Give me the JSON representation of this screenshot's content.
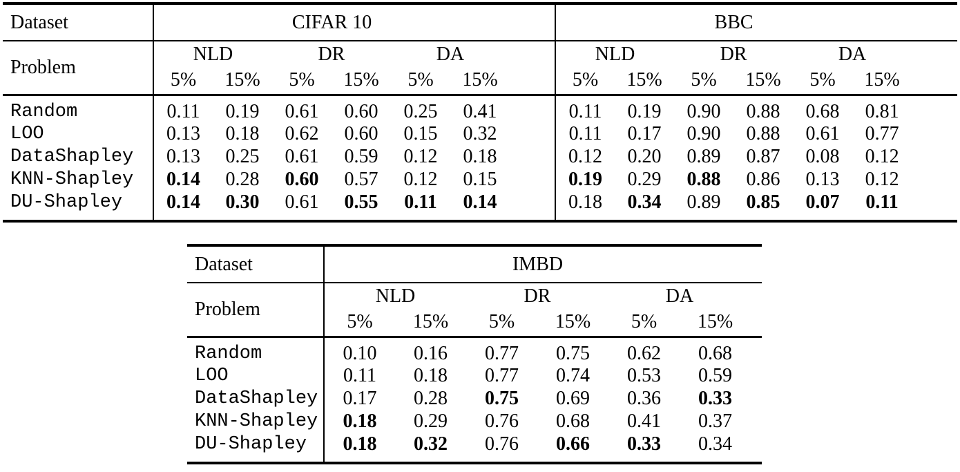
{
  "labels": {
    "dataset": "Dataset",
    "problem": "Problem"
  },
  "problems": [
    "NLD",
    "DR",
    "DA"
  ],
  "percents": [
    "5%",
    "15%"
  ],
  "colors": {
    "background": "#ffffff",
    "text": "#000000",
    "rule": "#000000"
  },
  "table_top": {
    "datasets": [
      "CIFAR 10",
      "BBC"
    ],
    "rows": [
      {
        "method": "Random",
        "cells": [
          {
            "t": "0.11"
          },
          {
            "t": "0.19"
          },
          {
            "t": "0.61"
          },
          {
            "t": "0.60"
          },
          {
            "t": "0.25"
          },
          {
            "t": "0.41"
          },
          {
            "t": "0.11"
          },
          {
            "t": "0.19"
          },
          {
            "t": "0.90"
          },
          {
            "t": "0.88"
          },
          {
            "t": "0.68"
          },
          {
            "t": "0.81"
          }
        ]
      },
      {
        "method": "LOO",
        "cells": [
          {
            "t": "0.13"
          },
          {
            "t": "0.18"
          },
          {
            "t": "0.62"
          },
          {
            "t": "0.60"
          },
          {
            "t": "0.15"
          },
          {
            "t": "0.32"
          },
          {
            "t": "0.11"
          },
          {
            "t": "0.17"
          },
          {
            "t": "0.90"
          },
          {
            "t": "0.88"
          },
          {
            "t": "0.61"
          },
          {
            "t": "0.77"
          }
        ]
      },
      {
        "method": "DataShapley",
        "cells": [
          {
            "t": "0.13"
          },
          {
            "t": "0.25"
          },
          {
            "t": "0.61"
          },
          {
            "t": "0.59"
          },
          {
            "t": "0.12"
          },
          {
            "t": "0.18"
          },
          {
            "t": "0.12"
          },
          {
            "t": "0.20"
          },
          {
            "t": "0.89"
          },
          {
            "t": "0.87"
          },
          {
            "t": "0.08"
          },
          {
            "t": "0.12"
          }
        ]
      },
      {
        "method": "KNN-Shapley",
        "cells": [
          {
            "t": "0.14",
            "b": true
          },
          {
            "t": "0.28"
          },
          {
            "t": "0.60",
            "b": true
          },
          {
            "t": "0.57"
          },
          {
            "t": "0.12"
          },
          {
            "t": "0.15"
          },
          {
            "t": "0.19",
            "b": true
          },
          {
            "t": "0.29"
          },
          {
            "t": "0.88",
            "b": true
          },
          {
            "t": "0.86"
          },
          {
            "t": "0.13"
          },
          {
            "t": "0.12"
          }
        ]
      },
      {
        "method": "DU-Shapley",
        "cells": [
          {
            "t": "0.14",
            "b": true
          },
          {
            "t": "0.30",
            "b": true
          },
          {
            "t": "0.61"
          },
          {
            "t": "0.55",
            "b": true
          },
          {
            "t": "0.11",
            "b": true
          },
          {
            "t": "0.14",
            "b": true
          },
          {
            "t": "0.18"
          },
          {
            "t": "0.34",
            "b": true
          },
          {
            "t": "0.89"
          },
          {
            "t": "0.85",
            "b": true
          },
          {
            "t": "0.07",
            "b": true
          },
          {
            "t": "0.11",
            "b": true
          }
        ]
      }
    ]
  },
  "table_bottom": {
    "datasets": [
      "IMBD"
    ],
    "rows": [
      {
        "method": "Random",
        "cells": [
          {
            "t": "0.10"
          },
          {
            "t": "0.16"
          },
          {
            "t": "0.77"
          },
          {
            "t": "0.75"
          },
          {
            "t": "0.62"
          },
          {
            "t": "0.68"
          }
        ]
      },
      {
        "method": "LOO",
        "cells": [
          {
            "t": "0.11"
          },
          {
            "t": "0.18"
          },
          {
            "t": "0.77"
          },
          {
            "t": "0.74"
          },
          {
            "t": "0.53"
          },
          {
            "t": "0.59"
          }
        ]
      },
      {
        "method": "DataShapley",
        "cells": [
          {
            "t": "0.17"
          },
          {
            "t": "0.28"
          },
          {
            "t": "0.75",
            "b": true
          },
          {
            "t": "0.69"
          },
          {
            "t": "0.36"
          },
          {
            "t": "0.33",
            "b": true
          }
        ]
      },
      {
        "method": "KNN-Shapley",
        "cells": [
          {
            "t": "0.18",
            "b": true
          },
          {
            "t": "0.29"
          },
          {
            "t": "0.76"
          },
          {
            "t": "0.68"
          },
          {
            "t": "0.41"
          },
          {
            "t": "0.37"
          }
        ]
      },
      {
        "method": "DU-Shapley",
        "cells": [
          {
            "t": "0.18",
            "b": true
          },
          {
            "t": "0.32",
            "b": true
          },
          {
            "t": "0.76"
          },
          {
            "t": "0.66",
            "b": true
          },
          {
            "t": "0.33",
            "b": true
          },
          {
            "t": "0.34"
          }
        ]
      }
    ]
  }
}
